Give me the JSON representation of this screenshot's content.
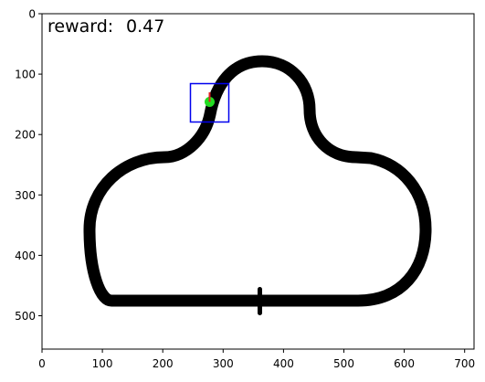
{
  "hud": {
    "reward_label": "reward:",
    "reward_value": "0.47"
  },
  "axes": {
    "x_ticks": [
      "0",
      "100",
      "200",
      "300",
      "400",
      "500",
      "600",
      "700"
    ],
    "y_ticks": [
      "0",
      "100",
      "200",
      "300",
      "400",
      "500"
    ]
  },
  "colors": {
    "track": "#000000",
    "agent": "#22dd22",
    "heading": "#dd2222",
    "view_box": "#0000ee"
  },
  "icons": {
    "agent": "green-dot-icon",
    "heading": "red-arrow-icon"
  }
}
